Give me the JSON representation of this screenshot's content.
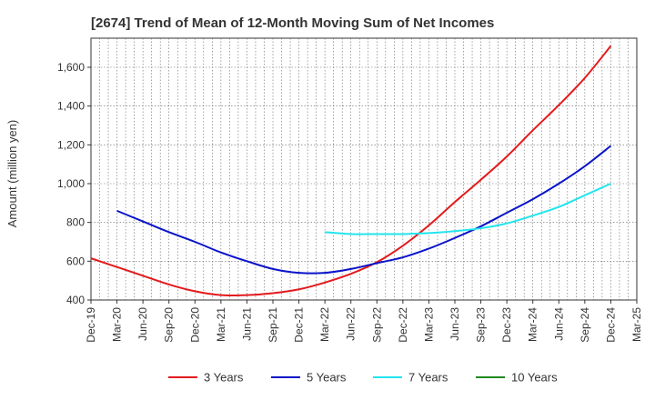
{
  "chart_data": {
    "type": "line",
    "title": "[2674]  Trend of Mean of 12-Month Moving Sum of Net Incomes",
    "ylabel": "Amount (million yen)",
    "xlabel": "",
    "ylim": [
      400,
      1750
    ],
    "yticks": [
      400,
      600,
      800,
      1000,
      1200,
      1400,
      1600
    ],
    "ytick_labels": [
      "400",
      "600",
      "800",
      "1,000",
      "1,200",
      "1,400",
      "1,600"
    ],
    "x_range": [
      "Dec-19",
      "Mar-25"
    ],
    "x_tick_labels": [
      "Dec-19",
      "Mar-20",
      "Jun-20",
      "Sep-20",
      "Dec-20",
      "Mar-21",
      "Jun-21",
      "Sep-21",
      "Dec-21",
      "Mar-22",
      "Jun-22",
      "Sep-22",
      "Dec-22",
      "Mar-23",
      "Jun-23",
      "Sep-23",
      "Dec-23",
      "Mar-24",
      "Jun-24",
      "Sep-24",
      "Dec-24",
      "Mar-25"
    ],
    "grid": true,
    "legend_position": "bottom",
    "series": [
      {
        "name": "3 Years",
        "color": "#e31a1c",
        "x": [
          "Dec-19",
          "Mar-20",
          "Jun-20",
          "Sep-20",
          "Dec-20",
          "Mar-21",
          "Jun-21",
          "Sep-21",
          "Dec-21",
          "Mar-22",
          "Jun-22",
          "Sep-22",
          "Dec-22",
          "Mar-23",
          "Jun-23",
          "Sep-23",
          "Dec-23",
          "Mar-24",
          "Jun-24",
          "Sep-24",
          "Dec-24"
        ],
        "values": [
          615,
          570,
          525,
          480,
          445,
          425,
          425,
          435,
          455,
          490,
          535,
          595,
          680,
          785,
          905,
          1020,
          1140,
          1275,
          1405,
          1545,
          1710
        ]
      },
      {
        "name": "5 Years",
        "color": "#0a14c8",
        "x": [
          "Mar-20",
          "Jun-20",
          "Sep-20",
          "Dec-20",
          "Mar-21",
          "Jun-21",
          "Sep-21",
          "Dec-21",
          "Mar-22",
          "Jun-22",
          "Sep-22",
          "Dec-22",
          "Mar-23",
          "Jun-23",
          "Sep-23",
          "Dec-23",
          "Mar-24",
          "Jun-24",
          "Sep-24",
          "Dec-24"
        ],
        "values": [
          860,
          805,
          750,
          700,
          645,
          600,
          560,
          540,
          540,
          560,
          590,
          620,
          665,
          720,
          780,
          850,
          920,
          1000,
          1090,
          1195
        ]
      },
      {
        "name": "7 Years",
        "color": "#22e5ee",
        "x": [
          "Mar-22",
          "Jun-22",
          "Sep-22",
          "Dec-22",
          "Mar-23",
          "Jun-23",
          "Sep-23",
          "Dec-23",
          "Mar-24",
          "Jun-24",
          "Sep-24",
          "Dec-24"
        ],
        "values": [
          750,
          740,
          740,
          740,
          745,
          755,
          770,
          795,
          835,
          880,
          940,
          1000
        ]
      },
      {
        "name": "10 Years",
        "color": "#1f8a1f",
        "x": [],
        "values": []
      }
    ]
  }
}
